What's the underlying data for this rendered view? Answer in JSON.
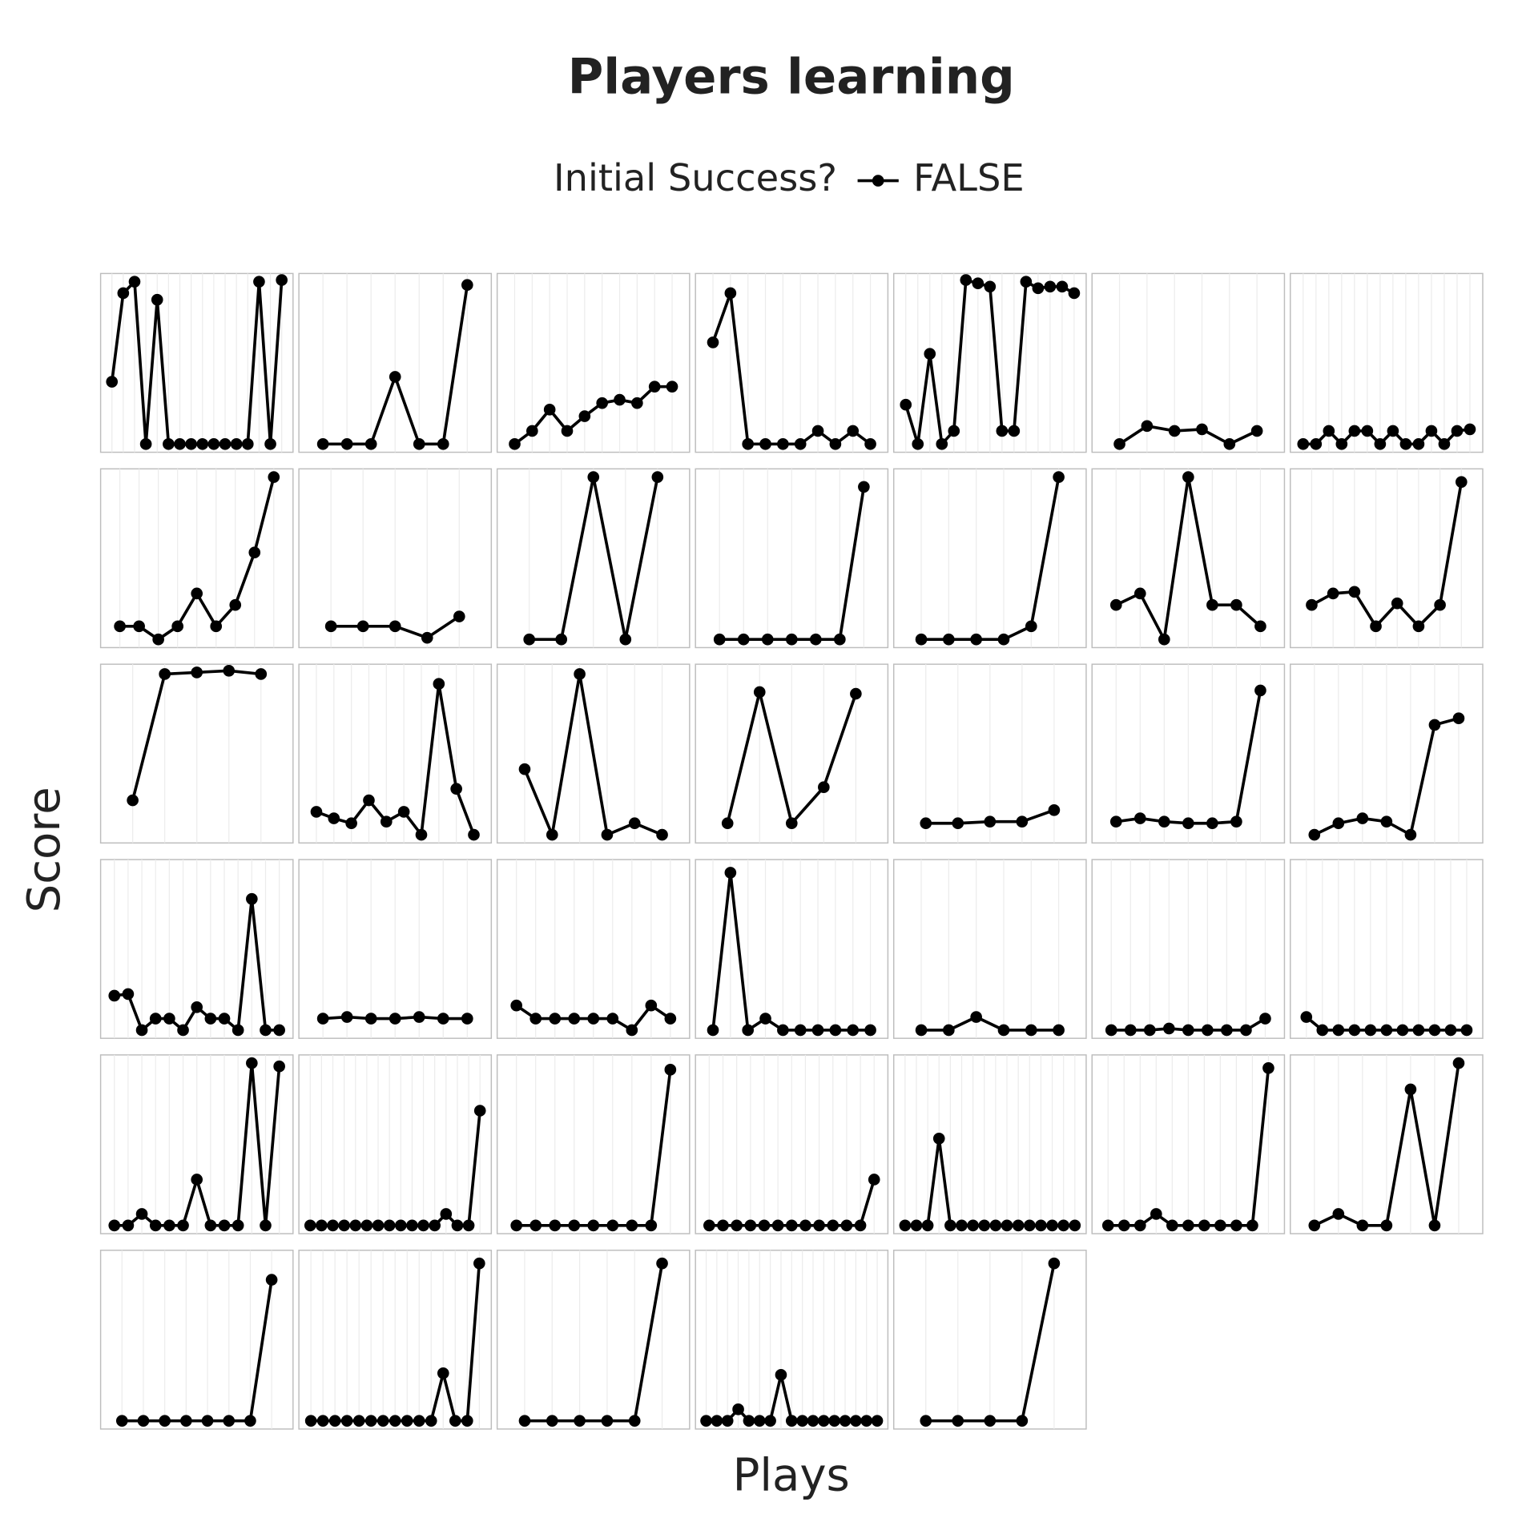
{
  "chart_data": {
    "type": "line",
    "title": "Players learning",
    "legend_title": "Initial Success?",
    "x_label": "Plays",
    "y_label": "Score",
    "grid": true,
    "series": [
      {
        "name": "FALSE",
        "color": "#000000"
      }
    ],
    "ylim": [
      -5,
      104
    ],
    "panels": [
      {
        "x": [
          1,
          2,
          3,
          4,
          5,
          6,
          7,
          8,
          9,
          10,
          11,
          12,
          13,
          14,
          15,
          16
        ],
        "values": [
          38,
          92,
          99,
          0,
          88,
          0,
          0,
          0,
          0,
          0,
          0,
          0,
          0,
          99,
          0,
          100
        ],
        "xlim": [
          0,
          17
        ]
      },
      {
        "x": [
          1,
          2,
          3,
          4,
          5,
          6,
          7
        ],
        "values": [
          0,
          0,
          0,
          41,
          0,
          0,
          97
        ],
        "xlim": [
          0,
          8
        ]
      },
      {
        "x": [
          1,
          2,
          3,
          4,
          5,
          6,
          7,
          8,
          9,
          10
        ],
        "values": [
          0,
          8,
          21,
          8,
          17,
          25,
          27,
          25,
          35,
          35
        ],
        "xlim": [
          0,
          11
        ]
      },
      {
        "x": [
          1,
          2,
          3,
          4,
          5,
          6,
          7,
          8,
          9,
          10
        ],
        "values": [
          62,
          92,
          0,
          0,
          0,
          0,
          8,
          0,
          8,
          0
        ],
        "xlim": [
          0,
          11
        ]
      },
      {
        "x": [
          1,
          2,
          3,
          4,
          5,
          6,
          7,
          8,
          9,
          10,
          11,
          12,
          13,
          14,
          15
        ],
        "values": [
          24,
          0,
          55,
          0,
          8,
          100,
          98,
          96,
          8,
          8,
          99,
          95,
          96,
          96,
          92
        ],
        "xlim": [
          0,
          16
        ]
      },
      {
        "x": [
          1,
          2,
          3,
          4,
          5,
          6
        ],
        "values": [
          0,
          11,
          8,
          9,
          0,
          8
        ],
        "xlim": [
          0,
          7
        ]
      },
      {
        "x": [
          1,
          2,
          3,
          4,
          5,
          6,
          7,
          8,
          9,
          10,
          11,
          12,
          13,
          14
        ],
        "values": [
          0,
          0,
          8,
          0,
          8,
          8,
          0,
          8,
          0,
          0,
          8,
          0,
          8,
          9
        ],
        "xlim": [
          0,
          15
        ]
      },
      {
        "x": [
          1,
          2,
          3,
          4,
          5,
          6,
          7,
          8,
          9
        ],
        "values": [
          8,
          8,
          0,
          8,
          28,
          8,
          21,
          53,
          99
        ],
        "xlim": [
          0,
          10
        ]
      },
      {
        "x": [
          1,
          2,
          3,
          4,
          5
        ],
        "values": [
          8,
          8,
          8,
          1,
          14
        ],
        "xlim": [
          0,
          6
        ]
      },
      {
        "x": [
          1,
          2,
          3,
          4,
          5
        ],
        "values": [
          0,
          0,
          99,
          0,
          99
        ],
        "xlim": [
          0,
          6
        ]
      },
      {
        "x": [
          1,
          2,
          3,
          4,
          5,
          6,
          7
        ],
        "values": [
          0,
          0,
          0,
          0,
          0,
          0,
          93
        ],
        "xlim": [
          0,
          8
        ]
      },
      {
        "x": [
          1,
          2,
          3,
          4,
          5,
          6
        ],
        "values": [
          0,
          0,
          0,
          0,
          8,
          99
        ],
        "xlim": [
          0,
          7
        ]
      },
      {
        "x": [
          1,
          2,
          3,
          4,
          5,
          6,
          7
        ],
        "values": [
          21,
          28,
          0,
          99,
          21,
          21,
          8
        ],
        "xlim": [
          0,
          8
        ]
      },
      {
        "x": [
          1,
          2,
          3,
          4,
          5,
          6,
          7,
          8
        ],
        "values": [
          21,
          28,
          29,
          8,
          22,
          8,
          21,
          96
        ],
        "xlim": [
          0,
          9
        ]
      },
      {
        "x": [
          1,
          2,
          3,
          4,
          5
        ],
        "values": [
          21,
          98,
          99,
          100,
          98
        ],
        "xlim": [
          0,
          6
        ]
      },
      {
        "x": [
          1,
          2,
          3,
          4,
          5,
          6,
          7,
          8,
          9,
          10
        ],
        "values": [
          14,
          10,
          7,
          21,
          8,
          14,
          0,
          92,
          28,
          0
        ],
        "xlim": [
          0,
          11
        ]
      },
      {
        "x": [
          1,
          2,
          3,
          4,
          5,
          6
        ],
        "values": [
          40,
          0,
          98,
          0,
          7,
          0
        ],
        "xlim": [
          0,
          7
        ]
      },
      {
        "x": [
          1,
          2,
          3,
          4,
          5
        ],
        "values": [
          7,
          87,
          7,
          29,
          86
        ],
        "xlim": [
          0,
          6
        ]
      },
      {
        "x": [
          1,
          2,
          3,
          4,
          5
        ],
        "values": [
          7,
          7,
          8,
          8,
          15
        ],
        "xlim": [
          0,
          6
        ]
      },
      {
        "x": [
          1,
          2,
          3,
          4,
          5,
          6,
          7
        ],
        "values": [
          8,
          10,
          8,
          7,
          7,
          8,
          88
        ],
        "xlim": [
          0,
          8
        ]
      },
      {
        "x": [
          1,
          2,
          3,
          4,
          5,
          6,
          7
        ],
        "values": [
          0,
          7,
          10,
          8,
          0,
          67,
          71
        ],
        "xlim": [
          0,
          8
        ]
      },
      {
        "x": [
          1,
          2,
          3,
          4,
          5,
          6,
          7,
          8,
          9,
          10,
          11,
          12,
          13
        ],
        "values": [
          21,
          22,
          0,
          7,
          7,
          0,
          14,
          7,
          7,
          0,
          80,
          0,
          0
        ],
        "xlim": [
          0,
          14
        ]
      },
      {
        "x": [
          1,
          2,
          3,
          4,
          5,
          6,
          7
        ],
        "values": [
          7,
          8,
          7,
          7,
          8,
          7,
          7
        ],
        "xlim": [
          0,
          8
        ]
      },
      {
        "x": [
          1,
          2,
          3,
          4,
          5,
          6,
          7,
          8,
          9
        ],
        "values": [
          15,
          7,
          7,
          7,
          7,
          7,
          0,
          15,
          7
        ],
        "xlim": [
          0,
          10
        ]
      },
      {
        "x": [
          1,
          2,
          3,
          4,
          5,
          6,
          7,
          8,
          9,
          10
        ],
        "values": [
          0,
          96,
          0,
          7,
          0,
          0,
          0,
          0,
          0,
          0
        ],
        "xlim": [
          0,
          11
        ]
      },
      {
        "x": [
          1,
          2,
          3,
          4,
          5,
          6
        ],
        "values": [
          0,
          0,
          8,
          0,
          0,
          0
        ],
        "xlim": [
          0,
          7
        ]
      },
      {
        "x": [
          1,
          2,
          3,
          4,
          5,
          6,
          7,
          8,
          9
        ],
        "values": [
          0,
          0,
          0,
          1,
          0,
          0,
          0,
          0,
          7
        ],
        "xlim": [
          0,
          10
        ]
      },
      {
        "x": [
          1,
          2,
          3,
          4,
          5,
          6,
          7,
          8,
          9,
          10,
          11
        ],
        "values": [
          8,
          0,
          0,
          0,
          0,
          0,
          0,
          0,
          0,
          0,
          0
        ],
        "xlim": [
          0,
          12
        ]
      },
      {
        "x": [
          1,
          2,
          3,
          4,
          5,
          6,
          7,
          8,
          9,
          10,
          11,
          12,
          13
        ],
        "values": [
          0,
          0,
          7,
          0,
          0,
          0,
          28,
          0,
          0,
          0,
          99,
          0,
          97
        ],
        "xlim": [
          0,
          14
        ]
      },
      {
        "x": [
          1,
          2,
          3,
          4,
          5,
          6,
          7,
          8,
          9,
          10,
          11,
          12,
          13,
          14,
          15,
          16
        ],
        "values": [
          0,
          0,
          0,
          0,
          0,
          0,
          0,
          0,
          0,
          0,
          0,
          0,
          7,
          0,
          0,
          70
        ],
        "xlim": [
          0,
          17
        ]
      },
      {
        "x": [
          1,
          2,
          3,
          4,
          5,
          6,
          7,
          8,
          9
        ],
        "values": [
          0,
          0,
          0,
          0,
          0,
          0,
          0,
          0,
          95
        ],
        "xlim": [
          0,
          10
        ]
      },
      {
        "x": [
          1,
          2,
          3,
          4,
          5,
          6,
          7,
          8,
          9,
          10,
          11,
          12,
          13
        ],
        "values": [
          0,
          0,
          0,
          0,
          0,
          0,
          0,
          0,
          0,
          0,
          0,
          0,
          28
        ],
        "xlim": [
          0,
          14
        ]
      },
      {
        "x": [
          1,
          2,
          3,
          4,
          5,
          6,
          7,
          8,
          9,
          10,
          11,
          12,
          13,
          14,
          15,
          16
        ],
        "values": [
          0,
          0,
          0,
          53,
          0,
          0,
          0,
          0,
          0,
          0,
          0,
          0,
          0,
          0,
          0,
          0
        ],
        "xlim": [
          0,
          17
        ]
      },
      {
        "x": [
          1,
          2,
          3,
          4,
          5,
          6,
          7,
          8,
          9,
          10,
          11
        ],
        "values": [
          0,
          0,
          0,
          7,
          0,
          0,
          0,
          0,
          0,
          0,
          96
        ],
        "xlim": [
          0,
          12
        ]
      },
      {
        "x": [
          1,
          2,
          3,
          4,
          5,
          6,
          7
        ],
        "values": [
          0,
          7,
          0,
          0,
          83,
          0,
          99
        ],
        "xlim": [
          0,
          8
        ]
      },
      {
        "x": [
          1,
          2,
          3,
          4,
          5,
          6,
          7,
          8
        ],
        "values": [
          0,
          0,
          0,
          0,
          0,
          0,
          0,
          86
        ],
        "xlim": [
          0,
          9
        ]
      },
      {
        "x": [
          1,
          2,
          3,
          4,
          5,
          6,
          7,
          8,
          9,
          10,
          11,
          12,
          13,
          14,
          15
        ],
        "values": [
          0,
          0,
          0,
          0,
          0,
          0,
          0,
          0,
          0,
          0,
          0,
          29,
          0,
          0,
          96
        ],
        "xlim": [
          0,
          16
        ]
      },
      {
        "x": [
          1,
          2,
          3,
          4,
          5,
          6
        ],
        "values": [
          0,
          0,
          0,
          0,
          0,
          96
        ],
        "xlim": [
          0,
          7
        ]
      },
      {
        "x": [
          1,
          2,
          3,
          4,
          5,
          6,
          7,
          8,
          9,
          10,
          11,
          12,
          13,
          14,
          15,
          16,
          17
        ],
        "values": [
          0,
          0,
          0,
          7,
          0,
          0,
          0,
          28,
          0,
          0,
          0,
          0,
          0,
          0,
          0,
          0,
          0
        ],
        "xlim": [
          0,
          18
        ]
      },
      {
        "x": [
          1,
          2,
          3,
          4,
          5
        ],
        "values": [
          0,
          0,
          0,
          0,
          96
        ],
        "xlim": [
          0,
          6
        ]
      }
    ]
  }
}
